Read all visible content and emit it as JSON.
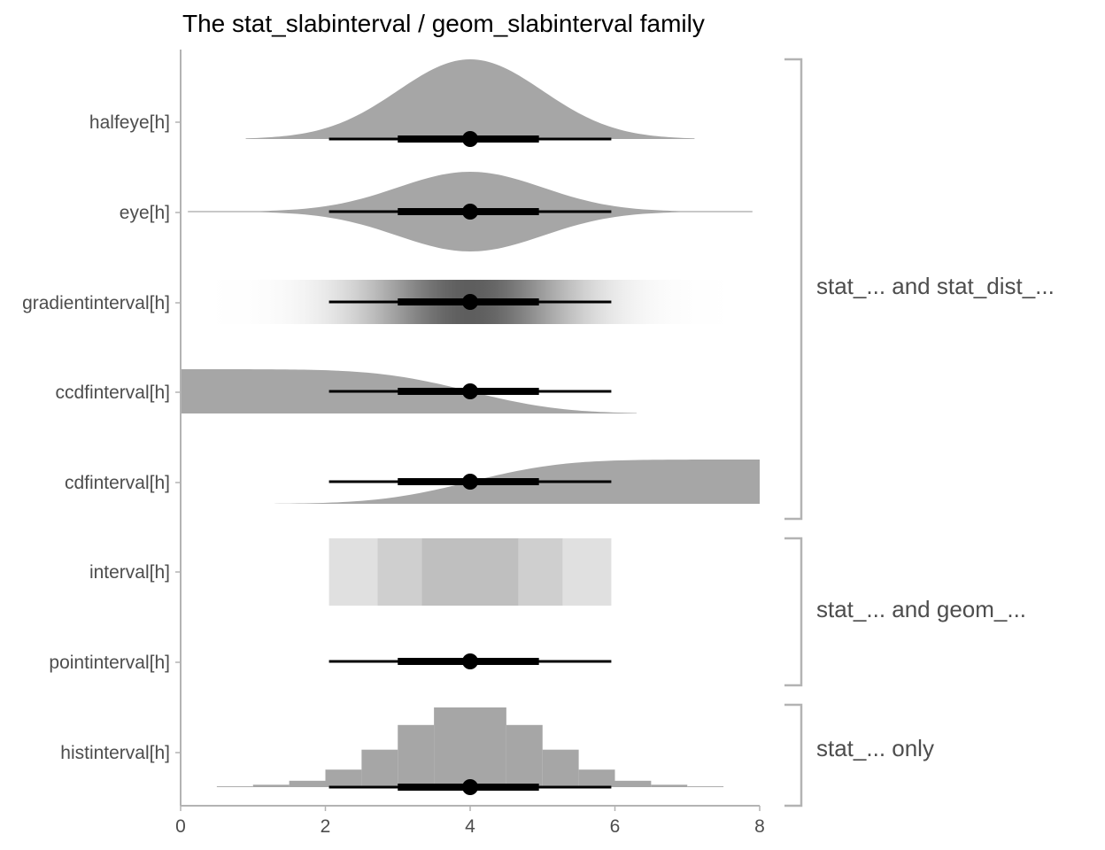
{
  "chart_data": {
    "type": "slabinterval",
    "title": "The stat_slabinterval / geom_slabinterval family",
    "xlabel": "",
    "ylabel": "",
    "xlim": [
      0,
      8
    ],
    "x_ticks": [
      "0",
      "2",
      "4",
      "6",
      "8"
    ],
    "x_tick_values": [
      0,
      2,
      4,
      6,
      8
    ],
    "distribution": {
      "family": "normal",
      "mean": 4,
      "sd": 1
    },
    "interval": {
      "point": 4,
      "inner": [
        3.0,
        4.95
      ],
      "outer": [
        2.05,
        5.95
      ]
    },
    "rows": [
      {
        "label": "halfeye[h]",
        "slab": "halfeye"
      },
      {
        "label": "eye[h]",
        "slab": "eye"
      },
      {
        "label": "gradientinterval[h]",
        "slab": "gradient"
      },
      {
        "label": "ccdfinterval[h]",
        "slab": "ccdf"
      },
      {
        "label": "cdfinterval[h]",
        "slab": "cdf"
      },
      {
        "label": "interval[h]",
        "slab": "interval"
      },
      {
        "label": "pointinterval[h]",
        "slab": "pointinterval"
      },
      {
        "label": "histinterval[h]",
        "slab": "hist"
      }
    ],
    "interval_bands": [
      {
        "x0": 2.05,
        "x1": 2.72,
        "shade": "#e0e0e0"
      },
      {
        "x0": 2.72,
        "x1": 3.33,
        "shade": "#cfcfcf"
      },
      {
        "x0": 3.33,
        "x1": 4.67,
        "shade": "#bfbfbf"
      },
      {
        "x0": 4.67,
        "x1": 5.28,
        "shade": "#cfcfcf"
      },
      {
        "x0": 5.28,
        "x1": 5.95,
        "shade": "#e0e0e0"
      }
    ],
    "histogram": {
      "bin_width": 0.5,
      "bins": [
        {
          "x0": 0.5,
          "height": 0.01
        },
        {
          "x0": 1.0,
          "height": 0.03
        },
        {
          "x0": 1.5,
          "height": 0.08
        },
        {
          "x0": 2.0,
          "height": 0.22
        },
        {
          "x0": 2.5,
          "height": 0.47
        },
        {
          "x0": 3.0,
          "height": 0.78
        },
        {
          "x0": 3.5,
          "height": 1.0
        },
        {
          "x0": 4.0,
          "height": 1.0
        },
        {
          "x0": 4.5,
          "height": 0.78
        },
        {
          "x0": 5.0,
          "height": 0.47
        },
        {
          "x0": 5.5,
          "height": 0.22
        },
        {
          "x0": 6.0,
          "height": 0.08
        },
        {
          "x0": 6.5,
          "height": 0.03
        },
        {
          "x0": 7.0,
          "height": 0.01
        }
      ]
    },
    "groups": [
      {
        "label": "stat_... and stat_dist_...",
        "rows": [
          0,
          4
        ]
      },
      {
        "label": "stat_... and geom_...",
        "rows": [
          5,
          6
        ]
      },
      {
        "label": "stat_... only",
        "rows": [
          7,
          7
        ]
      }
    ],
    "colors": {
      "slab": "#a6a6a6",
      "interval": "#000000",
      "axis": "#b3b3b3",
      "text": "#4d4d4d"
    }
  }
}
